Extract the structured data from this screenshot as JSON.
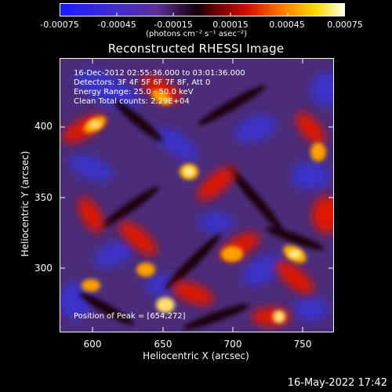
{
  "colorbar": {
    "tick_labels": [
      "-0.00075",
      "-0.00045",
      "-0.00015",
      "0.00015",
      "0.00045",
      "0.00075"
    ],
    "unit": "(photons cm⁻² s⁻¹ asec⁻²)"
  },
  "title": "Reconstructed RHESSI Image",
  "info": {
    "time_range": "16-Dec-2012 02:55:36.000 to 03:01:36.000",
    "detectors": "Detectors: 3F 4F 5F 6F 7F 8F, Att 0",
    "energy_range": "Energy Range: 25.0 - 50.0 keV",
    "clean_counts": "Clean     Total counts: 2.29E+04",
    "peak": "Position of Peak = [654,272]"
  },
  "axes": {
    "xlabel": "Heliocentric X (arcsec)",
    "ylabel": "Heliocentric Y (arcsec)",
    "x_ticks": [
      "600",
      "650",
      "700",
      "750"
    ],
    "y_ticks": [
      "300",
      "350",
      "400"
    ]
  },
  "footer": "16-May-2022 17:42",
  "colors": {
    "background": "#000000",
    "axis": "#ffffff"
  },
  "chart_data": {
    "type": "heatmap",
    "title": "Reconstructed RHESSI Image",
    "xlabel": "Heliocentric X (arcsec)",
    "ylabel": "Heliocentric Y (arcsec)",
    "xlim": [
      578,
      768
    ],
    "ylim": [
      255,
      445
    ],
    "x_ticks": [
      600,
      650,
      700,
      750
    ],
    "y_ticks": [
      300,
      350,
      400
    ],
    "color_range": [
      -0.00075,
      0.00075
    ],
    "colorbar_ticks": [
      -0.00075,
      -0.00045,
      -0.00015,
      0.00015,
      0.00045,
      0.00075
    ],
    "peak_position": [
      654,
      272
    ]
  }
}
